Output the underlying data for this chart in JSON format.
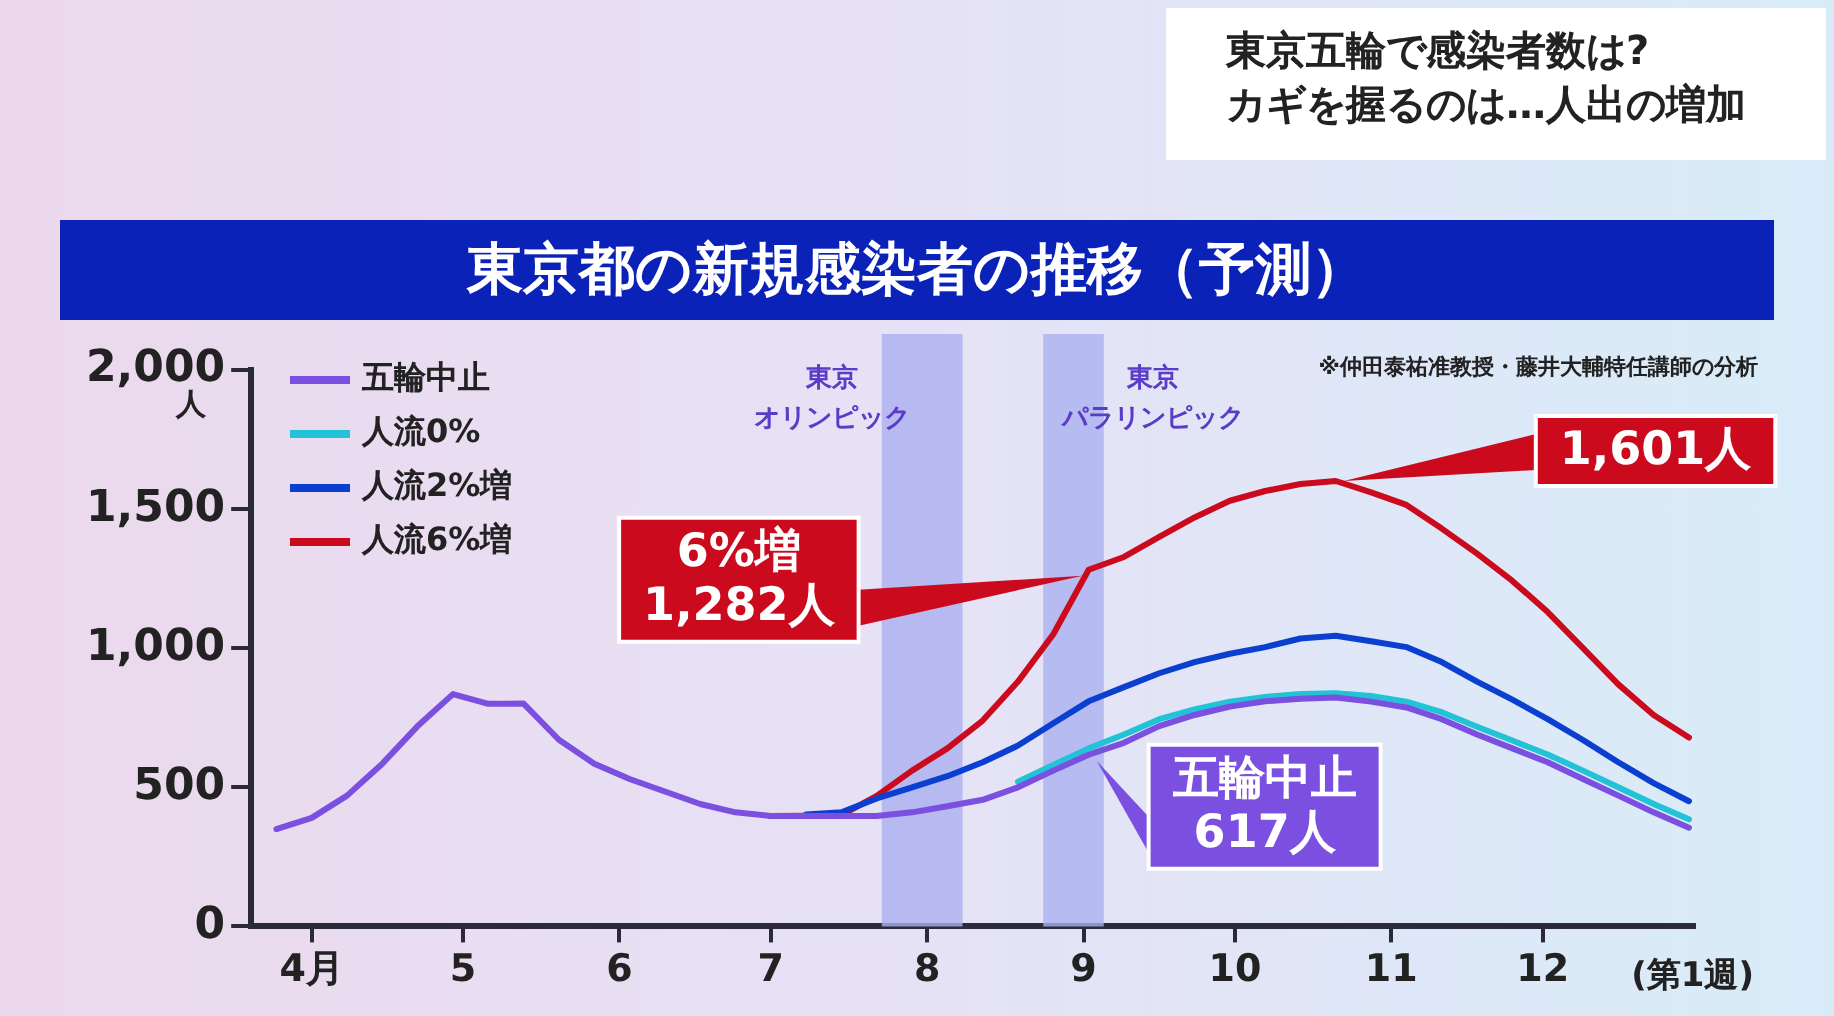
{
  "chart_data": {
    "type": "line",
    "title": "東京都の新規感染者の推移（予測）",
    "ylabel": "人",
    "xlabel": "(第1週)",
    "annotations": [
      "東京五輪で感染者数は?",
      "カギを握るのは…人出の増加",
      "※仲田泰祐准教授・藤井大輔特任講師の分析",
      {
        "text": "6%増\n1,282人",
        "x": "--09-02",
        "y": 1282
      },
      {
        "text": "1,601人",
        "x": "--10-21",
        "y": 1601
      },
      "五輪中止",
      {
        "text": "617人",
        "x": "--09-02",
        "y": 617
      }
    ],
    "x": [
      "--03-25",
      "--04-01",
      "--04-08",
      "--04-15",
      "--04-22",
      "--04-29",
      "--05-06",
      "--05-13",
      "--05-20",
      "--05-27",
      "--06-03",
      "--06-10",
      "--06-17",
      "--06-24",
      "--07-01",
      "--07-08",
      "--07-15",
      "--07-22",
      "--07-29",
      "--08-05",
      "--08-12",
      "--08-19",
      "--08-26",
      "--09-02",
      "--09-09",
      "--09-16",
      "--09-23",
      "--09-30",
      "--10-07",
      "--10-14",
      "--10-21",
      "--10-28",
      "--11-04",
      "--11-11",
      "--11-18",
      "--11-25",
      "--12-02",
      "--12-09",
      "--12-16",
      "--12-23",
      "--12-30"
    ],
    "series": [
      {
        "name": "五輪中止",
        "color": "#7b4fe0",
        "values": [
          350,
          390,
          470,
          585,
          720,
          835,
          800,
          801,
          671,
          585,
          530,
          485,
          440,
          410,
          397,
          397,
          397,
          397,
          410,
          432,
          455,
          500,
          560,
          617,
          660,
          720,
          760,
          790,
          809,
          818,
          823,
          808,
          787,
          745,
          690,
          640,
          590,
          530,
          470,
          410,
          355
        ]
      },
      {
        "name": "人流0%",
        "color": "#22c3d6",
        "values": [
          null,
          null,
          null,
          null,
          null,
          null,
          null,
          null,
          null,
          null,
          null,
          null,
          null,
          null,
          null,
          null,
          null,
          null,
          null,
          null,
          null,
          520,
          580,
          640,
          690,
          745,
          780,
          808,
          825,
          835,
          838,
          828,
          808,
          770,
          718,
          668,
          618,
          560,
          500,
          440,
          385
        ]
      },
      {
        "name": "人流2%増",
        "color": "#0b3fd0",
        "values": [
          null,
          null,
          null,
          null,
          null,
          null,
          null,
          null,
          null,
          null,
          null,
          null,
          null,
          null,
          null,
          402,
          410,
          460,
          500,
          540,
          590,
          650,
          730,
          809,
          860,
          910,
          950,
          980,
          1004,
          1035,
          1045,
          1025,
          1004,
          950,
          880,
          815,
          745,
          670,
          590,
          515,
          450
        ]
      },
      {
        "name": "人流6%増",
        "color": "#cc0a1e",
        "values": [
          null,
          null,
          null,
          null,
          null,
          null,
          null,
          null,
          null,
          null,
          null,
          null,
          null,
          null,
          397,
          398,
          400,
          469,
          560,
          640,
          740,
          880,
          1050,
          1282,
          1328,
          1400,
          1470,
          1530,
          1565,
          1590,
          1601,
          1560,
          1515,
          1430,
          1340,
          1242,
          1130,
          1000,
          870,
          760,
          679
        ]
      }
    ],
    "xlim": [
      "--03-20",
      "--12-31"
    ],
    "xticks": [
      {
        "value": "--04-01",
        "label": "4月"
      },
      {
        "value": "--05-01",
        "label": "5"
      },
      {
        "value": "--06-01",
        "label": "6"
      },
      {
        "value": "--07-01",
        "label": "7"
      },
      {
        "value": "--08-01",
        "label": "8"
      },
      {
        "value": "--09-01",
        "label": "9"
      },
      {
        "value": "--10-01",
        "label": "10"
      },
      {
        "value": "--11-01",
        "label": "11"
      },
      {
        "value": "--12-01",
        "label": "12"
      }
    ],
    "ylim": [
      0,
      2000
    ],
    "yticks": [
      {
        "value": 0,
        "label": "0"
      },
      {
        "value": 500,
        "label": "500"
      },
      {
        "value": 1000,
        "label": "1,000"
      },
      {
        "value": 1500,
        "label": "1,500"
      },
      {
        "value": 2000,
        "label": "2,000"
      }
    ],
    "bands": [
      {
        "axis": "x",
        "from": "--07-23",
        "to": "--08-08",
        "label": "東京オリンピック",
        "color": "#aab0f0"
      },
      {
        "axis": "x",
        "from": "--08-24",
        "to": "--09-05",
        "label": "東京パラリンピック",
        "color": "#aab0f0"
      }
    ],
    "grid": false,
    "legend": "top left",
    "marker": "none",
    "line_style": "solid"
  }
}
